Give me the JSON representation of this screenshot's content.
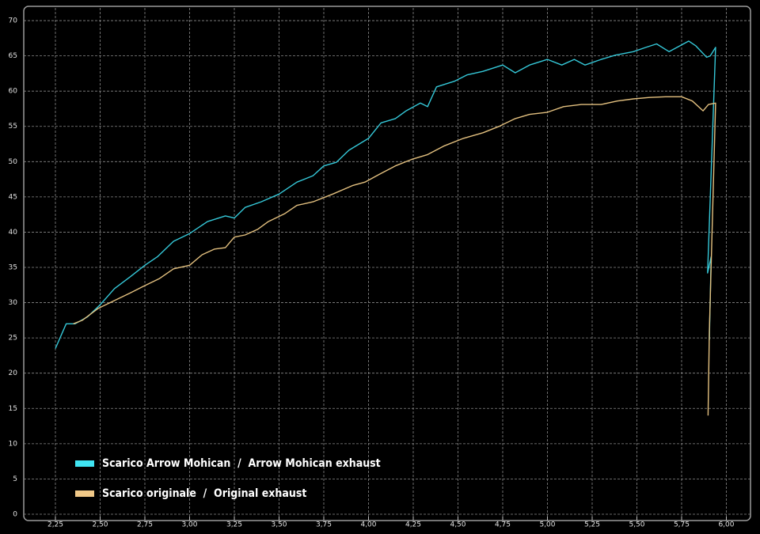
{
  "chart_data": {
    "type": "line",
    "legend": "lower left",
    "grid": true,
    "xlim": [
      2.073,
      6.135
    ],
    "ylim": [
      -0.9,
      71.8
    ],
    "xticks": [
      {
        "value": 2.25,
        "label": "2,25"
      },
      {
        "value": 2.5,
        "label": "2,50"
      },
      {
        "value": 2.75,
        "label": "2,75"
      },
      {
        "value": 3.0,
        "label": "3,00"
      },
      {
        "value": 3.25,
        "label": "3,25"
      },
      {
        "value": 3.5,
        "label": "3,50"
      },
      {
        "value": 3.75,
        "label": "3,75"
      },
      {
        "value": 4.0,
        "label": "4,00"
      },
      {
        "value": 4.25,
        "label": "4,25"
      },
      {
        "value": 4.5,
        "label": "4,50"
      },
      {
        "value": 4.75,
        "label": "4,75"
      },
      {
        "value": 5.0,
        "label": "5,00"
      },
      {
        "value": 5.25,
        "label": "5,25"
      },
      {
        "value": 5.5,
        "label": "5,50"
      },
      {
        "value": 5.75,
        "label": "5,75"
      },
      {
        "value": 6.0,
        "label": "6,00"
      }
    ],
    "yticks": [
      0,
      5,
      10,
      15,
      20,
      25,
      30,
      35,
      40,
      45,
      50,
      55,
      60,
      65,
      70
    ],
    "series": [
      {
        "name": "Scarico Arrow Mohican  /  Arrow Mohican exhaust",
        "color": "#35c8d8",
        "legend_color": "#40e4f2",
        "x": [
          2.25,
          2.31,
          2.36,
          2.43,
          2.5,
          2.58,
          2.67,
          2.75,
          2.82,
          2.91,
          3.0,
          3.1,
          3.2,
          3.25,
          3.31,
          3.4,
          3.5,
          3.6,
          3.69,
          3.75,
          3.82,
          3.89,
          4.0,
          4.07,
          4.15,
          4.21,
          4.29,
          4.33,
          4.38,
          4.48,
          4.55,
          4.64,
          4.75,
          4.82,
          4.9,
          5.0,
          5.08,
          5.15,
          5.21,
          5.3,
          5.38,
          5.48,
          5.55,
          5.61,
          5.68,
          5.79,
          5.83,
          5.89,
          5.91,
          5.94,
          5.895,
          5.915,
          5.905
        ],
        "values": [
          23.5,
          27,
          27,
          28,
          29.7,
          32,
          33.7,
          35.3,
          36.5,
          38.7,
          39.8,
          41.5,
          42.3,
          42,
          43.5,
          44.3,
          45.4,
          47.1,
          48,
          49.4,
          49.9,
          51.6,
          53.3,
          55.5,
          56.1,
          57.2,
          58.3,
          57.8,
          60.6,
          61.4,
          62.3,
          62.8,
          63.7,
          62.6,
          63.7,
          64.5,
          63.7,
          64.5,
          63.7,
          64.5,
          65.1,
          65.6,
          66.2,
          66.7,
          65.6,
          67.1,
          66.4,
          64.8,
          65,
          66.2,
          34.2,
          36.5,
          24.7
        ]
      },
      {
        "name": "Scarico originale  /  Original exhaust",
        "color": "#e3c07f",
        "legend_color": "#f0c888",
        "x": [
          2.35,
          2.4,
          2.49,
          2.58,
          2.67,
          2.74,
          2.83,
          2.91,
          3.0,
          3.07,
          3.14,
          3.2,
          3.25,
          3.31,
          3.38,
          3.44,
          3.53,
          3.6,
          3.69,
          3.8,
          3.91,
          3.98,
          4.06,
          4.15,
          4.24,
          4.33,
          4.42,
          4.53,
          4.64,
          4.73,
          4.82,
          4.9,
          5.0,
          5.09,
          5.19,
          5.3,
          5.39,
          5.48,
          5.57,
          5.66,
          5.75,
          5.81,
          5.87,
          5.9,
          5.94,
          5.905,
          5.898
        ],
        "values": [
          27,
          27.5,
          29.2,
          30.3,
          31.4,
          32.3,
          33.4,
          34.8,
          35.3,
          36.8,
          37.6,
          37.8,
          39.3,
          39.6,
          40.4,
          41.5,
          42.6,
          43.8,
          44.3,
          45.4,
          46.6,
          47.1,
          48.2,
          49.4,
          50.3,
          51,
          52.2,
          53.3,
          54.1,
          55,
          56.1,
          56.7,
          57,
          57.8,
          58.1,
          58.1,
          58.6,
          58.9,
          59.1,
          59.2,
          59.2,
          58.6,
          57.2,
          58.1,
          58.3,
          25.8,
          14
        ]
      }
    ]
  }
}
